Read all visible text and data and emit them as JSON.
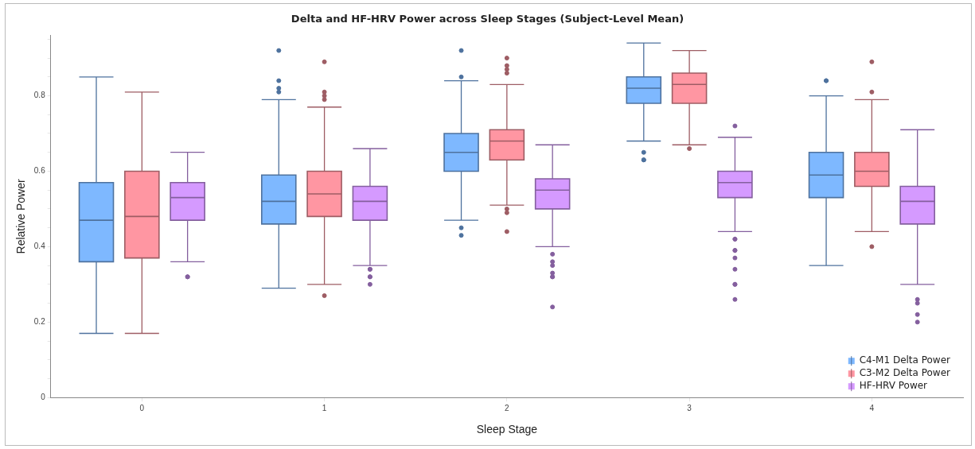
{
  "chart_data": {
    "type": "box",
    "title": "Delta and HF-HRV Power across Sleep Stages (Subject-Level Mean)",
    "xlabel": "Sleep Stage",
    "ylabel": "Relative Power",
    "categories": [
      "0",
      "1",
      "2",
      "3",
      "4"
    ],
    "ylim": [
      0,
      0.96
    ],
    "yticks": [
      0,
      {
        "value": 0.05,
        "label": null
      },
      {
        "value": 0.1,
        "label": null
      },
      {
        "value": 0.15,
        "label": null
      },
      0.2,
      {
        "value": 0.25,
        "label": null
      },
      {
        "value": 0.3,
        "label": null
      },
      {
        "value": 0.35,
        "label": null
      },
      0.4,
      {
        "value": 0.45,
        "label": null
      },
      {
        "value": 0.5,
        "label": null
      },
      {
        "value": 0.55,
        "label": null
      },
      0.6,
      {
        "value": 0.65,
        "label": null
      },
      {
        "value": 0.7,
        "label": null
      },
      {
        "value": 0.75,
        "label": null
      },
      0.8,
      {
        "value": 0.85,
        "label": null
      },
      {
        "value": 0.9,
        "label": null
      },
      {
        "value": 0.95,
        "label": null
      }
    ],
    "grid": false,
    "legend": "bottom right",
    "series": [
      {
        "name": "C4-M1 Delta Power",
        "color": "#7eb8ff",
        "boxes": [
          {
            "low": 0.17,
            "q1": 0.36,
            "median": 0.47,
            "q3": 0.57,
            "high": 0.85
          },
          {
            "low": 0.29,
            "q1": 0.46,
            "median": 0.52,
            "q3": 0.59,
            "high": 0.79,
            "outliers": [
              0.92,
              0.84,
              0.82,
              0.81
            ]
          },
          {
            "low": 0.47,
            "q1": 0.6,
            "median": 0.65,
            "q3": 0.7,
            "high": 0.84,
            "outliers": [
              0.92,
              0.85,
              0.45,
              0.43
            ]
          },
          {
            "low": 0.68,
            "q1": 0.78,
            "median": 0.82,
            "q3": 0.85,
            "high": 0.94,
            "outliers": [
              0.65,
              0.63,
              0.63
            ]
          },
          {
            "low": 0.35,
            "q1": 0.53,
            "median": 0.59,
            "q3": 0.65,
            "high": 0.8,
            "outliers": [
              0.84,
              0.84
            ]
          }
        ]
      },
      {
        "name": "C3-M2 Delta Power",
        "color": "#ff96a2",
        "boxes": [
          {
            "low": 0.17,
            "q1": 0.37,
            "median": 0.48,
            "q3": 0.6,
            "high": 0.81
          },
          {
            "low": 0.3,
            "q1": 0.48,
            "median": 0.54,
            "q3": 0.6,
            "high": 0.77,
            "outliers": [
              0.89,
              0.81,
              0.8,
              0.79,
              0.27
            ]
          },
          {
            "low": 0.51,
            "q1": 0.63,
            "median": 0.68,
            "q3": 0.71,
            "high": 0.83,
            "outliers": [
              0.9,
              0.88,
              0.87,
              0.86,
              0.5,
              0.49,
              0.44
            ]
          },
          {
            "low": 0.67,
            "q1": 0.78,
            "median": 0.83,
            "q3": 0.86,
            "high": 0.92,
            "outliers": [
              0.66
            ]
          },
          {
            "low": 0.44,
            "q1": 0.56,
            "median": 0.6,
            "q3": 0.65,
            "high": 0.79,
            "outliers": [
              0.89,
              0.81,
              0.4
            ]
          }
        ]
      },
      {
        "name": "HF-HRV Power",
        "color": "#d59aff",
        "boxes": [
          {
            "low": 0.36,
            "q1": 0.47,
            "median": 0.53,
            "q3": 0.57,
            "high": 0.65,
            "outliers": [
              0.32,
              0.32
            ]
          },
          {
            "low": 0.35,
            "q1": 0.47,
            "median": 0.52,
            "q3": 0.56,
            "high": 0.66,
            "outliers": [
              0.34,
              0.34,
              0.32,
              0.32,
              0.3
            ]
          },
          {
            "low": 0.4,
            "q1": 0.5,
            "median": 0.55,
            "q3": 0.58,
            "high": 0.67,
            "outliers": [
              0.38,
              0.36,
              0.35,
              0.33,
              0.32,
              0.32,
              0.24
            ]
          },
          {
            "low": 0.44,
            "q1": 0.53,
            "median": 0.57,
            "q3": 0.6,
            "high": 0.69,
            "outliers": [
              0.72,
              0.42,
              0.42,
              0.39,
              0.39,
              0.37,
              0.34,
              0.3,
              0.3,
              0.26
            ]
          },
          {
            "low": 0.3,
            "q1": 0.46,
            "median": 0.52,
            "q3": 0.56,
            "high": 0.71,
            "outliers": [
              0.26,
              0.25,
              0.22,
              0.2
            ]
          }
        ]
      }
    ]
  }
}
